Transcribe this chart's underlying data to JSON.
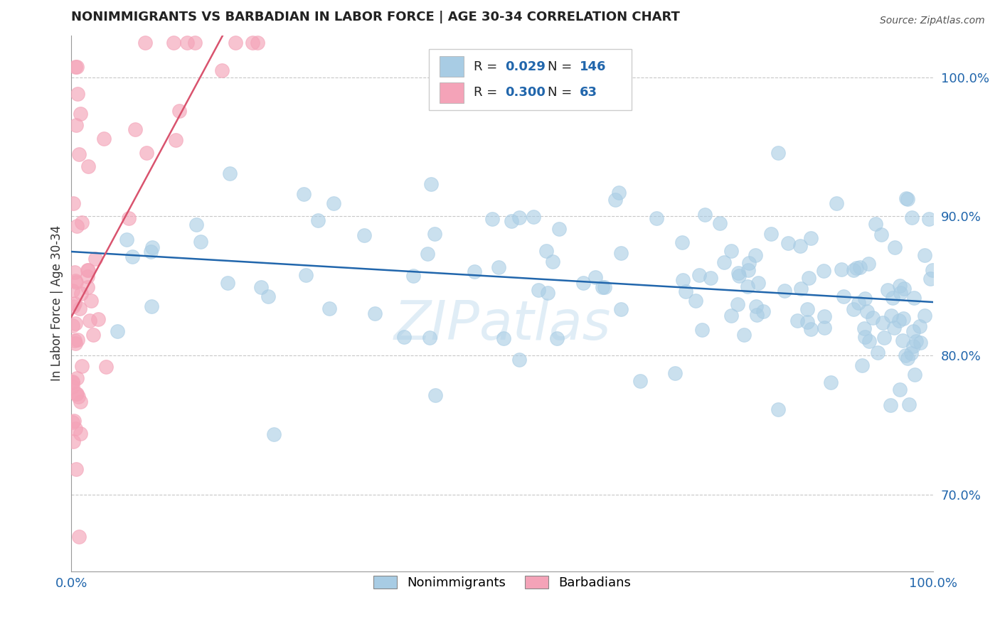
{
  "title": "NONIMMIGRANTS VS BARBADIAN IN LABOR FORCE | AGE 30-34 CORRELATION CHART",
  "source": "Source: ZipAtlas.com",
  "xlabel": "",
  "ylabel": "In Labor Force | Age 30-34",
  "blue_R": 0.029,
  "blue_N": 146,
  "pink_R": 0.3,
  "pink_N": 63,
  "blue_color": "#a8cce4",
  "pink_color": "#f4a3b8",
  "blue_line_color": "#2166ac",
  "pink_line_color": "#d9536e",
  "xlim": [
    0.0,
    1.0
  ],
  "ylim": [
    0.645,
    1.03
  ],
  "yticks": [
    0.7,
    0.8,
    0.9,
    1.0
  ],
  "ytick_labels": [
    "70.0%",
    "80.0%",
    "90.0%",
    "100.0%"
  ],
  "xticks": [
    0.0,
    0.25,
    0.5,
    0.75,
    1.0
  ],
  "xtick_labels": [
    "0.0%",
    "",
    "",
    "",
    "100.0%"
  ],
  "grid_color": "#c8c8c8",
  "background_color": "#ffffff",
  "watermark": "ZIPatlas",
  "legend_blue_label": "Nonimmigrants",
  "legend_pink_label": "Barbadians"
}
